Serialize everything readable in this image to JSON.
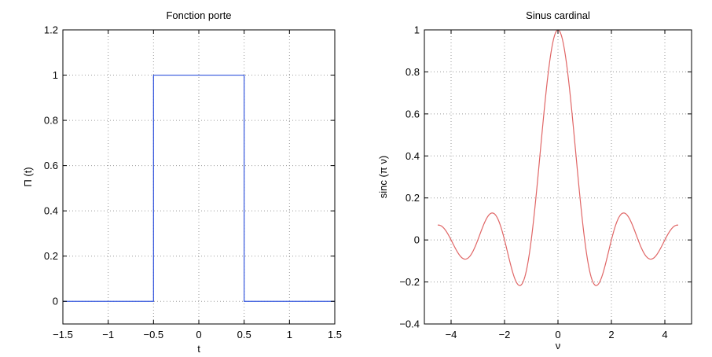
{
  "chart_data": [
    {
      "type": "line",
      "title": "Fonction porte",
      "xlabel": "t",
      "ylabel": "Π (t)",
      "xlim": [
        -1.5,
        1.5
      ],
      "ylim": [
        -0.1,
        1.2
      ],
      "xticks": [
        -1.5,
        -1,
        -0.5,
        0,
        0.5,
        1,
        1.5
      ],
      "xtick_labels": [
        "−1.5",
        "−1",
        "−0.5",
        "0",
        "0.5",
        "1",
        "1.5"
      ],
      "yticks": [
        0,
        0.2,
        0.4,
        0.6,
        0.8,
        1,
        1.2
      ],
      "ytick_labels": [
        "0",
        "0.2",
        "0.4",
        "0.6",
        "0.8",
        "1",
        "1.2"
      ],
      "grid": true,
      "color": "#3355dd",
      "series": [
        {
          "x": [
            -1.5,
            -0.5,
            -0.5,
            0.5,
            0.5,
            1.5
          ],
          "y": [
            0,
            0,
            1,
            1,
            0,
            0
          ]
        }
      ]
    },
    {
      "type": "line",
      "title": "Sinus cardinal",
      "xlabel": "ν",
      "ylabel": "sinc (π ν)",
      "xlim": [
        -5,
        5
      ],
      "ylim": [
        -0.4,
        1
      ],
      "xticks": [
        -4,
        -2,
        0,
        2,
        4
      ],
      "xtick_labels": [
        "−4",
        "−2",
        "0",
        "2",
        "4"
      ],
      "yticks": [
        -0.4,
        -0.2,
        0,
        0.2,
        0.4,
        0.6,
        0.8,
        1
      ],
      "ytick_labels": [
        "−0.4",
        "−0.2",
        "0",
        "0.2",
        "0.4",
        "0.6",
        "0.8",
        "1"
      ],
      "grid": true,
      "color": "#e06666",
      "series": [
        {
          "x_range": [
            -4.5,
            4.5
          ],
          "function": "sin(pi*x)/(pi*x)"
        }
      ]
    }
  ]
}
